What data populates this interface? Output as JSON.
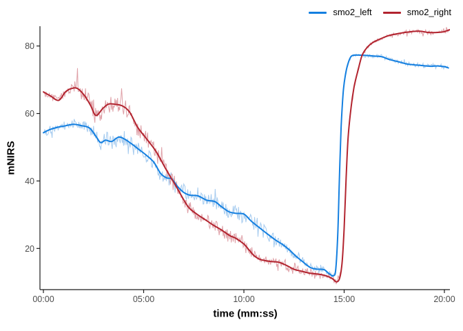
{
  "window": {
    "background": "#FFFFFF"
  },
  "chart_data": {
    "type": "line",
    "title": "",
    "xlabel": "time (mm:ss)",
    "ylabel": "mNIRS",
    "x_ticks": {
      "labels": [
        "00:00",
        "05:00",
        "10:00",
        "15:00",
        "20:00"
      ],
      "minutes": [
        0,
        5,
        10,
        15,
        20
      ]
    },
    "y_ticks": [
      20,
      40,
      60,
      80
    ],
    "xlim_minutes": [
      -0.17,
      20.45
    ],
    "ylim": [
      7.9,
      85.9
    ],
    "grid": false,
    "axis_color": "#1A1A1A",
    "tick_label_color": "#4D4D4D",
    "legend": {
      "position": "top-right",
      "entries": [
        {
          "name": "smo2_left",
          "color": "#137FE0",
          "raw_color": "#A5CBEF"
        },
        {
          "name": "smo2_right",
          "color": "#B2242F",
          "raw_color": "#DFA0A7"
        }
      ]
    },
    "series": [
      {
        "name": "smo2_left",
        "color": "#137FE0",
        "raw_color": "#A5CBEF",
        "smoothed_points": [
          [
            0,
            54.3
          ],
          [
            0.35,
            55.3
          ],
          [
            0.7,
            55.9
          ],
          [
            1.05,
            56.3
          ],
          [
            1.5,
            56.8
          ],
          [
            1.9,
            56.4
          ],
          [
            2.3,
            55.7
          ],
          [
            2.6,
            53.4
          ],
          [
            2.85,
            51.4
          ],
          [
            3.1,
            52.1
          ],
          [
            3.4,
            51.7
          ],
          [
            3.75,
            53.0
          ],
          [
            4.05,
            52.4
          ],
          [
            4.4,
            51.0
          ],
          [
            4.75,
            49.4
          ],
          [
            5.1,
            47.8
          ],
          [
            5.5,
            45.6
          ],
          [
            5.85,
            42.2
          ],
          [
            6.15,
            40.9
          ],
          [
            6.4,
            40.6
          ],
          [
            6.7,
            38.3
          ],
          [
            7.0,
            36.6
          ],
          [
            7.3,
            35.8
          ],
          [
            7.7,
            35.6
          ],
          [
            8.15,
            34.3
          ],
          [
            8.55,
            33.9
          ],
          [
            8.9,
            32.3
          ],
          [
            9.25,
            30.9
          ],
          [
            9.6,
            30.4
          ],
          [
            10.0,
            30.2
          ],
          [
            10.35,
            28.2
          ],
          [
            10.7,
            26.5
          ],
          [
            11.15,
            24.4
          ],
          [
            11.6,
            22.4
          ],
          [
            11.95,
            21.1
          ],
          [
            12.3,
            19.4
          ],
          [
            12.6,
            17.7
          ],
          [
            12.95,
            16.0
          ],
          [
            13.3,
            14.4
          ],
          [
            13.6,
            13.9
          ],
          [
            14.0,
            13.7
          ],
          [
            14.25,
            12.5
          ],
          [
            14.47,
            11.9
          ],
          [
            14.58,
            13.8
          ],
          [
            14.68,
            24.0
          ],
          [
            14.76,
            40.0
          ],
          [
            14.85,
            56.0
          ],
          [
            14.95,
            66.0
          ],
          [
            15.05,
            71.0
          ],
          [
            15.18,
            74.5
          ],
          [
            15.36,
            77.0
          ],
          [
            15.7,
            77.3
          ],
          [
            16.1,
            77.2
          ],
          [
            16.55,
            77.0
          ],
          [
            16.9,
            76.8
          ],
          [
            17.15,
            76.2
          ],
          [
            17.45,
            75.7
          ],
          [
            17.8,
            75.2
          ],
          [
            18.2,
            74.6
          ],
          [
            18.9,
            74.2
          ],
          [
            19.3,
            74.0
          ],
          [
            19.65,
            74.1
          ],
          [
            20.0,
            73.9
          ],
          [
            20.2,
            73.5
          ]
        ],
        "raw_noise_amplitude": [
          [
            0,
            1.5
          ],
          [
            1.2,
            1.7
          ],
          [
            2.0,
            2.6
          ],
          [
            2.9,
            3.3
          ],
          [
            3.8,
            2.7
          ],
          [
            4.8,
            3.0
          ],
          [
            6.0,
            2.9
          ],
          [
            7.5,
            2.9
          ],
          [
            9.0,
            3.1
          ],
          [
            10.5,
            2.9
          ],
          [
            12.0,
            2.3
          ],
          [
            13.2,
            1.8
          ],
          [
            14.2,
            1.4
          ],
          [
            14.8,
            1.0
          ],
          [
            15.5,
            0.6
          ],
          [
            17.0,
            0.8
          ],
          [
            19.0,
            0.9
          ],
          [
            20.2,
            1.0
          ]
        ]
      },
      {
        "name": "smo2_right",
        "color": "#B2242F",
        "raw_color": "#DFA0A7",
        "smoothed_points": [
          [
            0,
            66.4
          ],
          [
            0.35,
            65.2
          ],
          [
            0.76,
            63.9
          ],
          [
            1.1,
            66.4
          ],
          [
            1.4,
            67.4
          ],
          [
            1.7,
            67.4
          ],
          [
            2.05,
            65.3
          ],
          [
            2.35,
            62.4
          ],
          [
            2.62,
            59.4
          ],
          [
            2.95,
            61.4
          ],
          [
            3.25,
            62.8
          ],
          [
            3.6,
            62.7
          ],
          [
            3.95,
            62.2
          ],
          [
            4.3,
            60.4
          ],
          [
            4.7,
            55.9
          ],
          [
            5.05,
            53.2
          ],
          [
            5.6,
            48.9
          ],
          [
            6.1,
            43.6
          ],
          [
            6.6,
            38.6
          ],
          [
            7.2,
            32.5
          ],
          [
            7.6,
            30.4
          ],
          [
            8.1,
            28.4
          ],
          [
            8.5,
            26.8
          ],
          [
            8.85,
            25.6
          ],
          [
            9.3,
            23.8
          ],
          [
            9.6,
            23.0
          ],
          [
            10.0,
            21.3
          ],
          [
            10.25,
            19.6
          ],
          [
            10.5,
            17.9
          ],
          [
            10.75,
            16.9
          ],
          [
            11.05,
            16.4
          ],
          [
            11.4,
            16.1
          ],
          [
            11.75,
            15.9
          ],
          [
            12.15,
            14.9
          ],
          [
            12.5,
            13.8
          ],
          [
            12.85,
            13.3
          ],
          [
            13.25,
            12.7
          ],
          [
            13.7,
            12.4
          ],
          [
            14.1,
            11.9
          ],
          [
            14.4,
            11.1
          ],
          [
            14.62,
            10.1
          ],
          [
            14.78,
            11.3
          ],
          [
            14.9,
            16.0
          ],
          [
            15.0,
            26.0
          ],
          [
            15.1,
            41.0
          ],
          [
            15.2,
            53.0
          ],
          [
            15.35,
            62.0
          ],
          [
            15.5,
            68.0
          ],
          [
            15.7,
            73.0
          ],
          [
            15.9,
            77.3
          ],
          [
            16.15,
            79.6
          ],
          [
            16.4,
            80.9
          ],
          [
            16.65,
            81.7
          ],
          [
            17.0,
            82.6
          ],
          [
            17.3,
            83.2
          ],
          [
            17.8,
            83.8
          ],
          [
            18.4,
            84.3
          ],
          [
            18.8,
            84.4
          ],
          [
            19.2,
            84.0
          ],
          [
            19.6,
            84.0
          ],
          [
            19.95,
            84.2
          ],
          [
            20.3,
            84.9
          ]
        ],
        "raw_noise_amplitude": [
          [
            0,
            1.7
          ],
          [
            1.0,
            1.5
          ],
          [
            2.0,
            3.2
          ],
          [
            3.1,
            3.9
          ],
          [
            4.0,
            3.1
          ],
          [
            5.0,
            3.3
          ],
          [
            6.2,
            2.7
          ],
          [
            7.5,
            2.6
          ],
          [
            9.0,
            2.4
          ],
          [
            10.5,
            2.3
          ],
          [
            12.0,
            2.1
          ],
          [
            13.5,
            1.7
          ],
          [
            14.6,
            1.3
          ],
          [
            15.3,
            0.8
          ],
          [
            16.5,
            0.6
          ],
          [
            18.0,
            0.9
          ],
          [
            20.3,
            1.0
          ]
        ]
      }
    ]
  }
}
